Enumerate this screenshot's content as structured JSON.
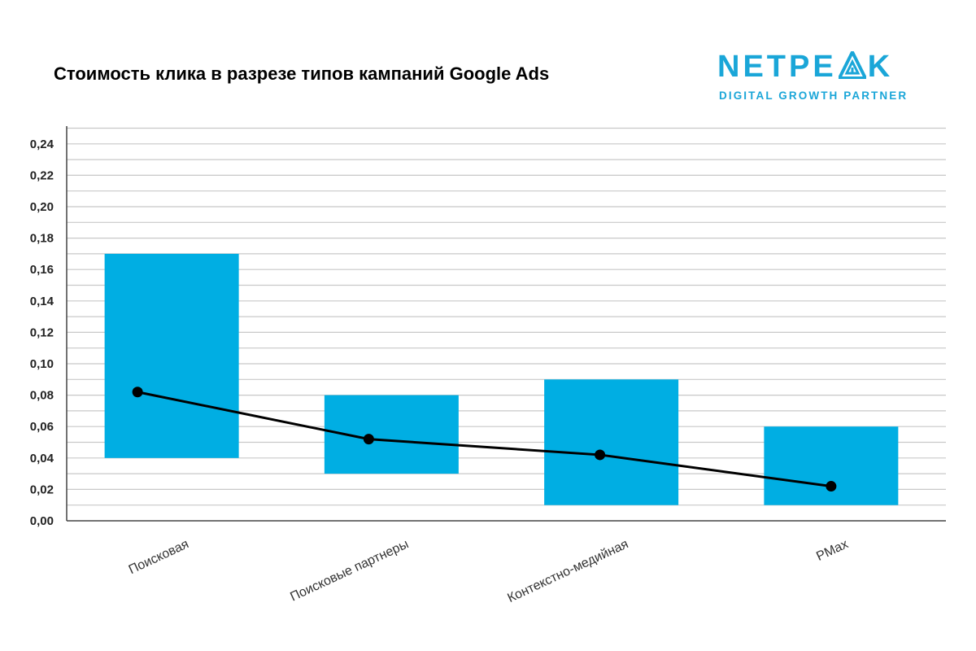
{
  "title": "Стоимость клика в разрезе типов кампаний Google Ads",
  "logo": {
    "word_left": "NETPE",
    "word_right": "K",
    "tagline": "DIGITAL GROWTH PARTNER",
    "color": "#1aa6d8"
  },
  "chart_data": {
    "type": "bar",
    "title": "Стоимость клика в разрезе типов кампаний Google Ads",
    "xlabel": "",
    "ylabel": "",
    "categories": [
      "Поисковая",
      "Поисковые партнеры",
      "Контекстно-медийная",
      "PMax"
    ],
    "bar_ranges": [
      [
        0.04,
        0.17
      ],
      [
        0.03,
        0.08
      ],
      [
        0.01,
        0.09
      ],
      [
        0.01,
        0.06
      ]
    ],
    "line_values": [
      0.082,
      0.052,
      0.042,
      0.022
    ],
    "ylim": [
      0,
      0.25
    ],
    "yticks": [
      "0,00",
      "0,02",
      "0,04",
      "0,06",
      "0,08",
      "0,10",
      "0,12",
      "0,14",
      "0,16",
      "0,18",
      "0,20",
      "0,22",
      "0,24"
    ],
    "ytick_values": [
      0,
      0.02,
      0.04,
      0.06,
      0.08,
      0.1,
      0.12,
      0.14,
      0.16,
      0.18,
      0.2,
      0.22,
      0.24
    ],
    "grid": true,
    "legend": "none",
    "colors": {
      "bar": "#00aee3",
      "line": "#000000",
      "grid": "#c8c8c8"
    }
  }
}
